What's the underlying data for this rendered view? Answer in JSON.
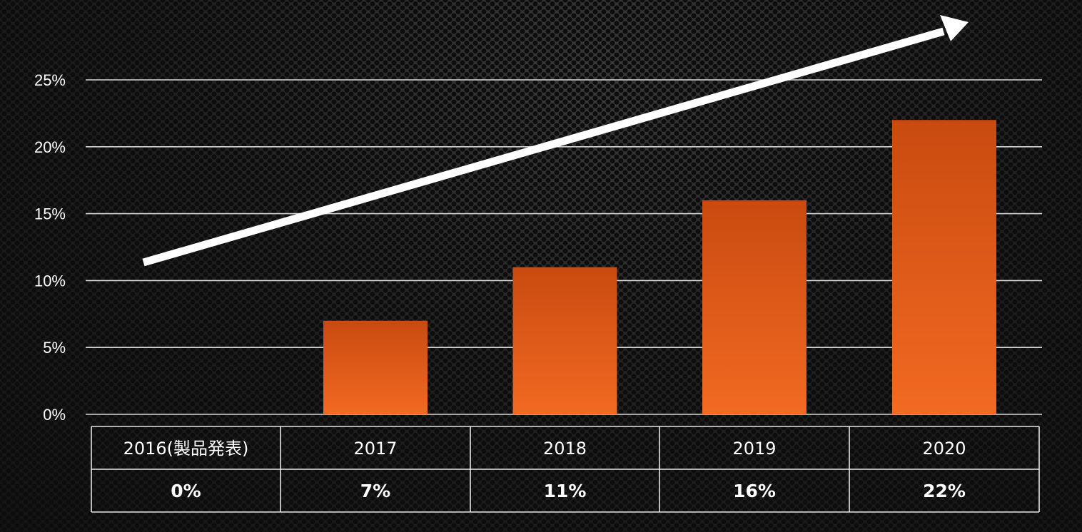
{
  "chart_data": {
    "type": "bar",
    "categories": [
      "2016(製品発表)",
      "2017",
      "2018",
      "2019",
      "2020"
    ],
    "values": [
      0,
      7,
      11,
      16,
      22
    ],
    "value_labels": [
      "0%",
      "7%",
      "11%",
      "16%",
      "22%"
    ],
    "y_ticks": [
      "0%",
      "5%",
      "10%",
      "15%",
      "20%",
      "25%"
    ],
    "y_tick_values": [
      0,
      5,
      10,
      15,
      20,
      25
    ],
    "ylim": [
      0,
      25
    ],
    "grid": true,
    "trend_arrow": true,
    "bar_color_top": "#c94a10",
    "bar_color_bottom": "#f26a22",
    "text_color": "#ffffff"
  }
}
